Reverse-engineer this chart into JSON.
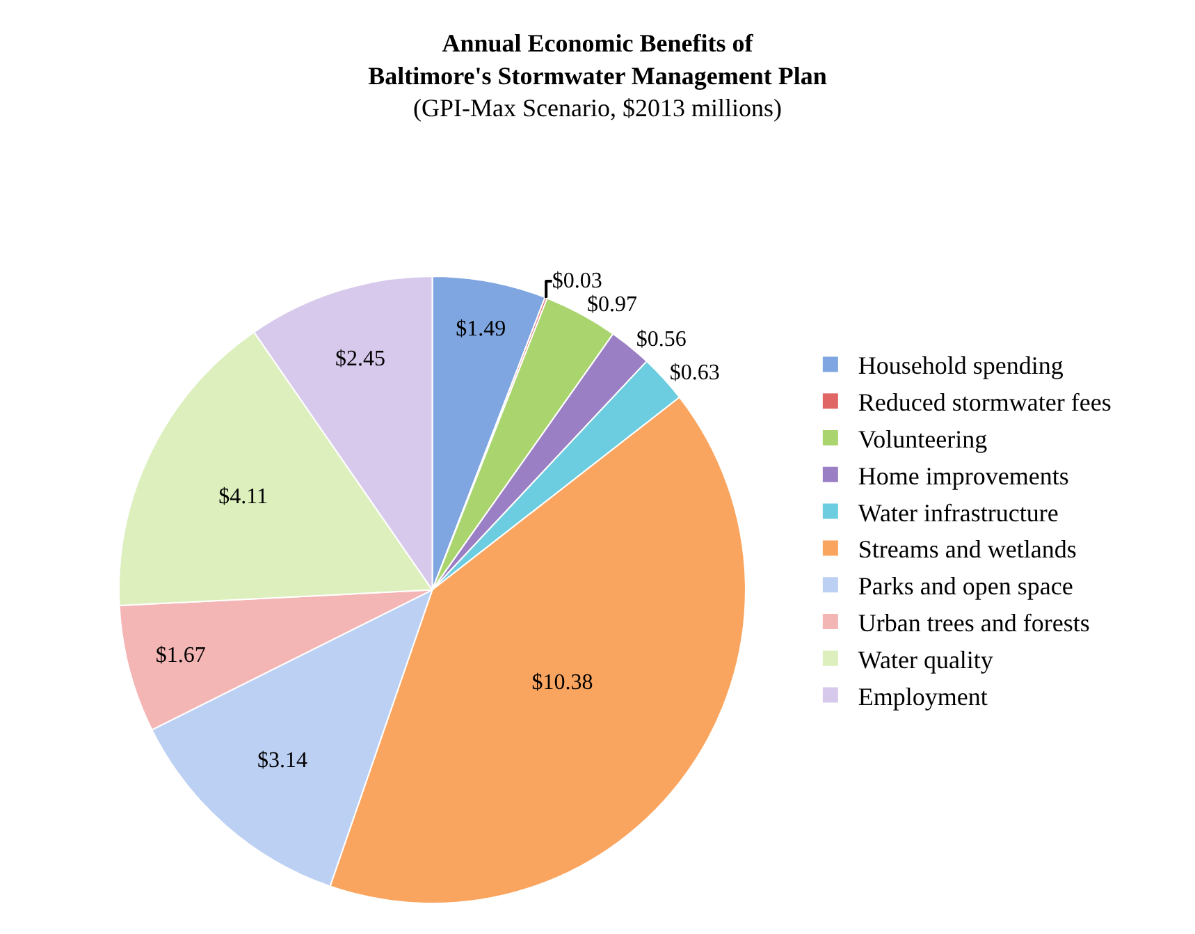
{
  "chart_data": {
    "type": "pie",
    "title": "Annual Economic Benefits of\nBaltimore's Stormwater Management Plan",
    "subtitle": "(GPI-Max Scenario, $2013 millions)",
    "categories": [
      "Household spending",
      "Reduced stormwater fees",
      "Volunteering",
      "Home improvements",
      "Water infrastructure",
      "Streams and wetlands",
      "Parks and open space",
      "Urban trees and forests",
      "Water quality",
      "Employment"
    ],
    "values": [
      1.49,
      0.03,
      0.97,
      0.56,
      0.63,
      10.38,
      3.14,
      1.67,
      4.11,
      2.45
    ],
    "value_labels": [
      "$1.49",
      "$0.03",
      "$0.97",
      "$0.56",
      "$0.63",
      "$10.38",
      "$3.14",
      "$1.67",
      "$4.11",
      "$2.45"
    ],
    "colors": [
      "#7fa6e0",
      "#e06666",
      "#a9d46e",
      "#9b7fc4",
      "#6ccde0",
      "#f9a55f",
      "#bcd0f3",
      "#f4b5b5",
      "#dcefbd",
      "#d7c9ec"
    ],
    "legend": "right"
  }
}
